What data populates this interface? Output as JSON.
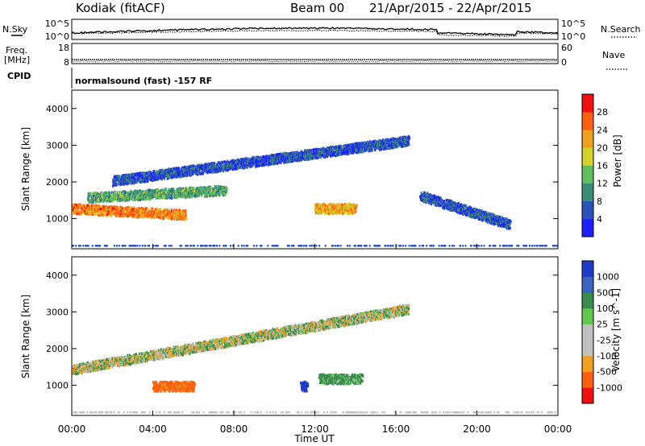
{
  "header": {
    "station": "Kodiak (fitACF)",
    "beam": "Beam 00",
    "date_range": "21/Apr/2015 - 22/Apr/2015"
  },
  "top_panels": {
    "nsky_label": "N.Sky",
    "nsky_ticks": [
      "10^5",
      "10^0"
    ],
    "nsearch_label": "N.Search",
    "nsearch_ticks": [
      "10^5",
      "10^0"
    ],
    "freq_label_1": "Freq.",
    "freq_label_2": "[MHz]",
    "freq_ticks": [
      "18",
      "8"
    ],
    "nave_label": "Nave",
    "nave_ticks": [
      "60",
      "0"
    ],
    "cpid_label": "CPID",
    "cpid_text": "normalsound (fast) -157 RF"
  },
  "x_axis": {
    "label": "Time UT",
    "ticks": [
      "00:00",
      "04:00",
      "08:00",
      "12:00",
      "16:00",
      "20:00",
      "00:00"
    ]
  },
  "chart_data": [
    {
      "type": "heatmap",
      "title": "",
      "quantity": "Power",
      "colorbar_label": "Power [dB]",
      "colorbar_ticks": [
        "28",
        "24",
        "20",
        "16",
        "12",
        "8",
        "4"
      ],
      "colors": [
        "#1e1eff",
        "#2a52b8",
        "#3c8c78",
        "#60bd60",
        "#d2d22a",
        "#f0a020",
        "#ff6010",
        "#f01010"
      ],
      "ylabel": "Slant Range [km]",
      "yticks": [
        "4000",
        "3000",
        "2000",
        "1000"
      ],
      "ylim": [
        180,
        4500
      ],
      "xlabel": "Time UT",
      "xlim_hours": [
        0,
        24
      ],
      "features": [
        {
          "desc": "strong near-range band",
          "t_start": 0.0,
          "t_end": 5.6,
          "range_start": 1300,
          "range_end": 1130,
          "level_db": 26
        },
        {
          "desc": "mid-range band",
          "t_start": 0.8,
          "t_end": 7.6,
          "range_start": 1600,
          "range_end": 1800,
          "level_db": 14
        },
        {
          "desc": "far band",
          "t_start": 2.0,
          "t_end": 16.6,
          "range_start": 2050,
          "range_end": 3150,
          "level_db": 8
        },
        {
          "desc": "midday patch",
          "t_start": 12.0,
          "t_end": 14.0,
          "range_start": 1300,
          "range_end": 1300,
          "level_db": 24
        },
        {
          "desc": "evening band",
          "t_start": 17.2,
          "t_end": 21.6,
          "range_start": 1650,
          "range_end": 870,
          "level_db": 8
        }
      ]
    },
    {
      "type": "heatmap",
      "title": "",
      "quantity": "Velocity",
      "colorbar_label": "Velocity [m s^-1]",
      "colorbar_ticks": [
        "1000",
        "500",
        "100",
        "25",
        "-25",
        "-100",
        "-500",
        "-1000"
      ],
      "colors": [
        "#1e3cc8",
        "#3a64c0",
        "#3c8c50",
        "#64c850",
        "#c0c0c0",
        "#c0c0c0",
        "#f0a020",
        "#ff6010",
        "#f01010"
      ],
      "ylabel": "Slant Range [km]",
      "yticks": [
        "4000",
        "3000",
        "2000",
        "1000"
      ],
      "ylim": [
        180,
        4500
      ],
      "xlabel": "Time UT",
      "xlim_hours": [
        0,
        24
      ],
      "features": [
        {
          "desc": "ground scatter band",
          "t_start": 0.0,
          "t_end": 16.6,
          "range_start": 1450,
          "range_end": 3100,
          "velocity": 0
        },
        {
          "desc": "negative velocity patches",
          "t_start": 4.0,
          "t_end": 6.0,
          "range_start": 1000,
          "range_end": 1000,
          "velocity": -400
        },
        {
          "desc": "positive velocity patch",
          "t_start": 11.3,
          "t_end": 11.6,
          "range_start": 1000,
          "range_end": 1000,
          "velocity": 900
        },
        {
          "desc": "green patch",
          "t_start": 12.2,
          "t_end": 14.3,
          "range_start": 1200,
          "range_end": 1200,
          "velocity": 150
        }
      ]
    }
  ]
}
